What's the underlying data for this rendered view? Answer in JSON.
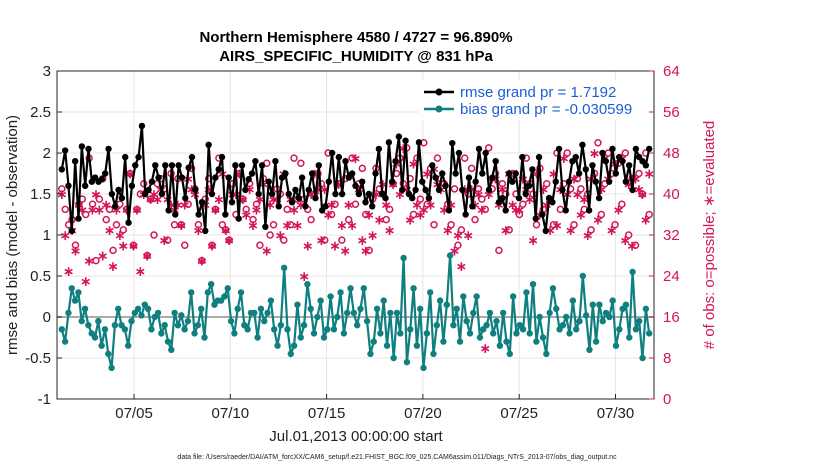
{
  "chart_data": {
    "type": "line",
    "title": "Northern Hemisphere 4580 / 4727 = 96.890%",
    "subtitle": "AIRS_SPECIFIC_HUMIDITY @ 831 hPa",
    "xlabel": "Jul.01,2013 00:00:00 start",
    "ylabel": "rmse and bias (model - observation)",
    "y2label": "# of obs: o=possible; ∗=evaluated",
    "footer": "data file: /Users/raeder/DAI/ATM_forcXX/CAM6_setup/f.e21.FHIST_BGC.f09_025.CAM6assim.011/Diags_NTrS_2013-07/obs_diag_output.nc",
    "xlim": [
      1.0,
      32.0
    ],
    "ylim": [
      -1,
      3
    ],
    "y2lim": [
      0,
      64
    ],
    "xticks": [
      5,
      10,
      15,
      20,
      25,
      30
    ],
    "xtick_labels": [
      "07/05",
      "07/10",
      "07/15",
      "07/20",
      "07/25",
      "07/30"
    ],
    "yticks": [
      -1,
      -0.5,
      0,
      0.5,
      1,
      1.5,
      2,
      2.5,
      3
    ],
    "ytick_labels": [
      "-1",
      "-0.5",
      "0",
      "0.5",
      "1",
      "1.5",
      "2",
      "2.5",
      "3"
    ],
    "y2ticks": [
      0,
      8,
      16,
      24,
      32,
      40,
      48,
      56,
      64
    ],
    "y2tick_labels": [
      "0",
      "8",
      "16",
      "24",
      "32",
      "40",
      "48",
      "56",
      "64"
    ],
    "grid": true,
    "legend_position": "top-right",
    "legend": [
      "rmse grand pr = 1.7192",
      "bias grand pr = -0.030599"
    ],
    "colors": {
      "rmse": "#000000",
      "bias": "#0f7f7f",
      "obs": "#d4145a",
      "zero_line": "#aaaaaa",
      "grid": "#e6e6e6"
    },
    "series": [
      {
        "name": "rmse",
        "values": [
          1.8,
          2.03,
          1.6,
          1.05,
          1.9,
          1.2,
          2.08,
          1.6,
          2.05,
          1.65,
          1.7,
          1.65,
          1.68,
          1.75,
          2.05,
          1.5,
          1.35,
          1.55,
          1.45,
          1.95,
          1.15,
          1.6,
          1.85,
          1.95,
          2.33,
          1.5,
          1.55,
          1.65,
          1.85,
          1.7,
          1.5,
          1.85,
          1.3,
          1.85,
          1.25,
          1.85,
          1.7,
          1.45,
          1.82,
          1.95,
          1.55,
          1.25,
          1.4,
          1.05,
          2.1,
          1.5,
          1.7,
          1.8,
          1.95,
          1.25,
          1.7,
          1.4,
          1.85,
          1.2,
          1.85,
          1.55,
          1.68,
          1.75,
          1.9,
          1.5,
          1.85,
          1.1,
          1.65,
          1.5,
          1.9,
          1.35,
          1.7,
          1.75,
          1.5,
          1.4,
          1.55,
          1.45,
          1.7,
          1.35,
          1.55,
          1.75,
          1.45,
          1.85,
          1.3,
          1.35,
          1.65,
          2.0,
          1.5,
          1.95,
          1.5,
          1.9,
          1.7,
          1.75,
          1.6,
          1.5,
          1.65,
          1.4,
          1.5,
          1.35,
          1.75,
          2.05,
          1.5,
          1.45,
          2.13,
          1.65,
          1.9,
          2.2,
          1.55,
          2.15,
          1.5,
          1.45,
          1.55,
          2.13,
          1.65,
          1.55,
          1.45,
          1.85,
          1.7,
          1.55,
          1.75,
          1.6,
          1.3,
          2.12,
          1.75,
          2.0,
          1.55,
          1.25,
          1.7,
          1.35,
          1.65,
          2.05,
          1.75,
          2.0,
          1.55,
          1.7,
          1.9,
          1.4,
          1.45,
          1.3,
          1.75,
          1.65,
          1.75,
          1.45,
          1.95,
          1.5,
          1.6,
          1.8,
          1.2,
          1.95,
          1.25,
          1.05,
          1.45,
          1.4,
          1.65,
          2.05,
          1.55,
          1.3,
          1.65,
          1.9,
          1.95,
          1.75,
          2.1,
          1.8,
          1.3,
          1.85,
          1.65,
          1.45,
          2.0,
          1.9,
          1.65,
          2.05,
          1.75,
          1.95,
          1.9,
          1.65,
          1.85,
          1.55,
          2.05,
          1.95,
          1.9,
          1.85,
          2.05
        ]
      },
      {
        "name": "bias",
        "values": [
          -0.15,
          -0.3,
          0.05,
          0.35,
          0.2,
          0.3,
          -0.05,
          0.1,
          -0.1,
          -0.2,
          -0.25,
          -0.05,
          -0.35,
          -0.15,
          -0.45,
          -0.62,
          -0.1,
          0.1,
          -0.1,
          -0.15,
          -0.35,
          -0.05,
          0.05,
          0.1,
          0.02,
          0.15,
          0.1,
          -0.15,
          0.0,
          0.05,
          -0.2,
          -0.1,
          -0.3,
          -0.4,
          0.05,
          -0.1,
          0.02,
          -0.15,
          -0.05,
          0.3,
          -0.2,
          -0.1,
          0.1,
          -0.25,
          0.3,
          0.4,
          0.15,
          0.2,
          0.2,
          0.25,
          0.35,
          -0.05,
          -0.2,
          0.1,
          0.3,
          -0.1,
          -0.15,
          0.05,
          0.05,
          -0.25,
          0.1,
          -0.05,
          0.05,
          0.2,
          -0.15,
          -0.35,
          -0.1,
          0.6,
          -0.15,
          -0.45,
          -0.35,
          0.15,
          -0.25,
          -0.1,
          0.4,
          0.1,
          -0.2,
          0.0,
          0.2,
          -0.25,
          -0.15,
          0.25,
          -0.15,
          0.0,
          0.3,
          -0.2,
          0.05,
          0.35,
          0.05,
          -0.1,
          0.1,
          0.35,
          -0.05,
          -0.45,
          -0.3,
          0.1,
          -0.2,
          0.2,
          -0.35,
          0.05,
          -0.5,
          0.05,
          -0.2,
          0.72,
          -0.55,
          -0.15,
          0.35,
          -0.35,
          0.1,
          -0.62,
          -0.2,
          0.3,
          -0.45,
          -0.1,
          0.2,
          -0.3,
          0.15,
          0.75,
          -0.1,
          0.1,
          -0.3,
          0.25,
          -0.05,
          -0.2,
          0.05,
          0.25,
          -0.25,
          -0.15,
          -0.1,
          0.05,
          -0.2,
          -0.05,
          -0.35,
          0.05,
          -0.3,
          -0.45,
          0.25,
          -0.2,
          -0.1,
          -0.15,
          0.3,
          -0.2,
          0.4,
          -0.3,
          0.0,
          -0.25,
          -0.45,
          0.05,
          0.35,
          0.1,
          -0.15,
          -0.1,
          0.0,
          -0.2,
          0.2,
          -0.15,
          -0.05,
          0.5,
          0.02,
          -0.4,
          0.15,
          -0.3,
          0.15,
          -0.05,
          0.05,
          0.0,
          0.2,
          -0.35,
          -0.15,
          0.1,
          0.15,
          -0.25,
          0.55,
          -0.15,
          -0.05,
          -0.5,
          0.1,
          -0.2
        ]
      },
      {
        "name": "obs_possible",
        "marker": "o",
        "values": [
          41,
          37,
          34,
          35,
          30,
          38,
          39,
          36,
          47,
          38,
          27,
          39,
          43,
          35,
          37,
          29,
          34,
          38,
          33,
          37,
          44,
          30,
          37,
          40,
          42,
          28,
          39,
          32,
          42,
          43,
          41,
          31,
          44,
          34,
          43,
          34,
          30,
          38,
          45,
          41,
          34,
          27,
          39,
          43,
          30,
          37,
          47,
          34,
          33,
          31,
          42,
          36,
          44,
          39,
          37,
          42,
          35,
          38,
          30,
          43,
          46,
          32,
          34,
          41,
          40,
          31,
          37,
          34,
          47,
          39,
          46,
          39,
          37,
          35,
          40,
          44,
          42,
          31,
          48,
          36,
          38,
          42,
          31,
          43,
          35,
          47,
          38,
          42,
          45,
          36,
          29,
          39,
          45,
          41,
          40,
          35,
          37,
          42,
          44,
          47,
          42,
          49,
          43,
          36,
          47,
          39,
          50,
          38,
          45,
          34,
          47,
          43,
          42,
          38,
          34,
          41,
          30,
          33,
          47,
          40,
          45,
          35,
          41,
          39,
          37,
          49,
          41,
          44,
          29,
          42,
          40,
          33,
          44,
          40,
          36,
          38,
          47,
          42,
          40,
          34,
          45,
          37,
          42,
          39,
          34,
          48,
          37,
          42,
          48,
          41,
          34,
          43,
          41,
          37,
          40,
          33,
          44,
          50,
          36,
          42,
          48,
          44,
          34,
          46,
          38,
          48,
          32,
          43,
          30,
          44,
          40,
          48,
          36
        ]
      },
      {
        "name": "obs_evaluated",
        "marker": "*",
        "values": [
          40,
          32,
          25,
          33,
          29,
          38,
          37,
          23,
          27,
          37,
          40,
          37,
          28,
          38,
          33,
          26,
          37,
          32,
          30,
          37,
          44,
          30,
          37,
          25,
          40,
          28,
          39,
          40,
          39,
          41,
          31,
          39,
          38,
          37,
          38,
          34,
          38,
          43,
          41,
          40,
          33,
          27,
          38,
          41,
          30,
          37,
          39,
          44,
          33,
          31,
          40,
          40,
          44,
          39,
          36,
          41,
          34,
          37,
          39,
          42,
          29,
          38,
          39,
          39,
          32,
          44,
          34,
          39,
          37,
          34,
          38,
          24,
          30,
          40,
          44,
          41,
          31,
          41,
          36,
          38,
          30,
          42,
          34,
          29,
          38,
          34,
          47,
          41,
          31,
          29,
          36,
          32,
          40,
          35,
          42,
          38,
          33,
          42,
          46,
          40,
          49,
          41,
          35,
          46,
          38,
          36,
          37,
          44,
          38,
          45,
          42,
          41,
          37,
          33,
          38,
          29,
          32,
          26,
          41,
          32,
          41,
          38,
          40,
          37,
          10,
          40,
          43,
          43,
          38,
          41,
          33,
          44,
          38,
          37,
          37,
          43,
          41,
          39,
          31,
          44,
          36,
          41,
          38,
          33,
          44,
          34,
          41,
          47,
          40,
          33,
          43,
          40,
          36,
          39,
          32,
          43,
          48,
          35,
          41,
          47,
          43,
          33,
          46,
          37,
          47,
          31,
          42,
          30,
          43,
          41,
          40,
          35,
          44
        ]
      }
    ]
  }
}
